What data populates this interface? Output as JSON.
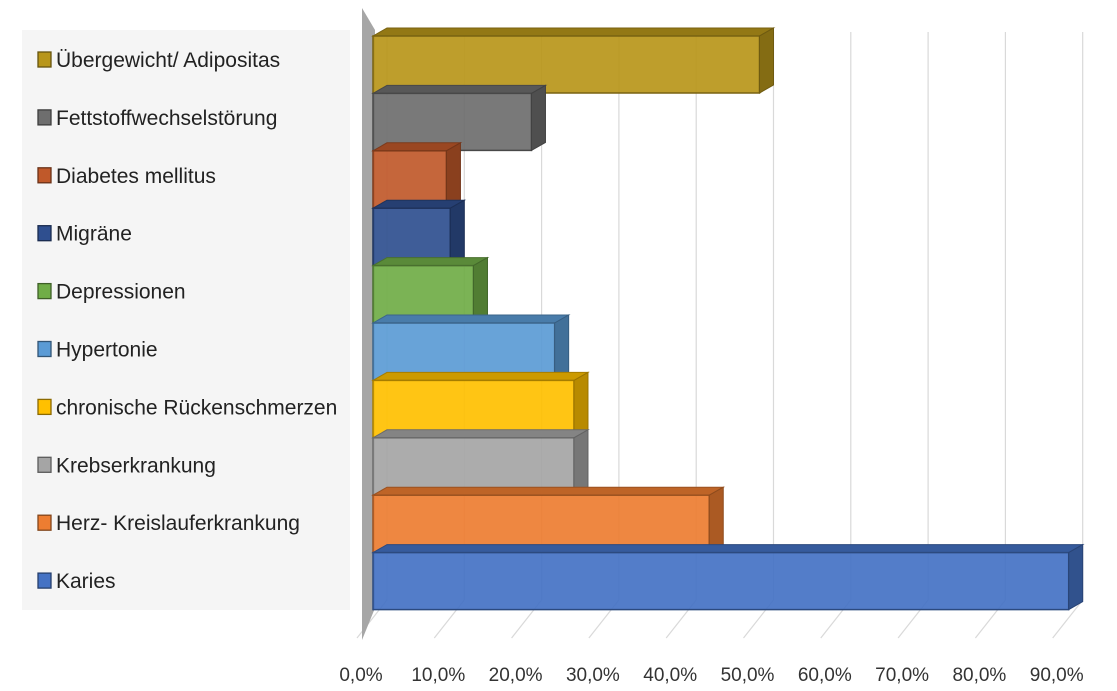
{
  "chart_data": {
    "type": "bar",
    "orientation": "horizontal",
    "style": "3d-clustered-bar",
    "categories": [
      "Übergewicht/ Adipositas",
      "Fettstoffwechselstörung",
      "Diabetes mellitus",
      "Migräne",
      "Depressionen",
      "Hypertonie",
      "chronische Rückenschmerzen",
      "Krebserkrankung",
      "Herz- Kreislauferkrankung",
      "Karies"
    ],
    "values": [
      50.0,
      20.5,
      9.5,
      10.0,
      13.0,
      23.5,
      26.0,
      26.0,
      43.5,
      90.0
    ],
    "colors": [
      "#B8961A",
      "#6E6E6E",
      "#C0592A",
      "#2F4F8F",
      "#70AD47",
      "#5B9BD5",
      "#FFC000",
      "#A5A5A5",
      "#ED7D31",
      "#4472C4"
    ],
    "x_ticks": [
      "0,0%",
      "10,0%",
      "20,0%",
      "30,0%",
      "40,0%",
      "50,0%",
      "60,0%",
      "70,0%",
      "80,0%",
      "90,0%"
    ],
    "xlim": [
      0,
      90
    ],
    "grid": true,
    "legend_placement": "left",
    "title": "",
    "xlabel": "",
    "ylabel": ""
  }
}
